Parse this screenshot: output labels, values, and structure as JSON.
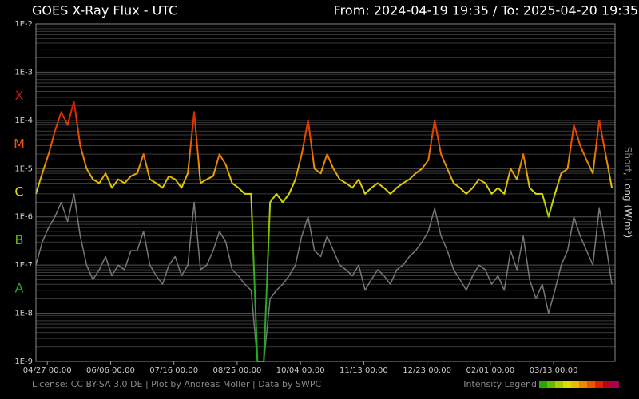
{
  "chart_data": {
    "type": "line",
    "title": "GOES X-Ray Flux - UTC",
    "subtitle": "From: 2024-04-19 19:35  /  To: 2025-04-20 19:35",
    "y_label_short": "Short",
    "y_label_long": ", Long (W/m²)",
    "footer": "License: CC BY-SA 3.0 DE | Plot by Andreas Möller | Data by SWPC",
    "legend_title": "Intensity Legend",
    "legend_colors": [
      "#22aa00",
      "#66bb00",
      "#aacc00",
      "#dddd00",
      "#eebb00",
      "#ee8800",
      "#ee5500",
      "#dd2200",
      "#bb0022",
      "#aa0055"
    ],
    "log_y": true,
    "grid": true,
    "ylim": [
      1e-09,
      0.01
    ],
    "yticks": [
      {
        "value": 1e-09,
        "label": "1E-9"
      },
      {
        "value": 1e-08,
        "label": "1E-8"
      },
      {
        "value": 1e-07,
        "label": "1E-7"
      },
      {
        "value": 1e-06,
        "label": "1E-6"
      },
      {
        "value": 1e-05,
        "label": "1E-5"
      },
      {
        "value": 0.0001,
        "label": "1E-4"
      },
      {
        "value": 0.001,
        "label": "1E-3"
      },
      {
        "value": 0.01,
        "label": "1E-2"
      }
    ],
    "xlim": [
      0,
      366
    ],
    "xticks": [
      {
        "value": 7.18,
        "label": "04/27 00:00"
      },
      {
        "value": 47.18,
        "label": "06/06 00:00"
      },
      {
        "value": 87.18,
        "label": "07/16 00:00"
      },
      {
        "value": 127.18,
        "label": "08/25 00:00"
      },
      {
        "value": 167.18,
        "label": "10/04 00:00"
      },
      {
        "value": 207.18,
        "label": "11/13 00:00"
      },
      {
        "value": 247.18,
        "label": "12/23 00:00"
      },
      {
        "value": 287.18,
        "label": "02/01 00:00"
      },
      {
        "value": 327.18,
        "label": "03/13 00:00"
      }
    ],
    "class_labels": [
      {
        "label": "X",
        "value": 0.00032,
        "color": "#cc1100"
      },
      {
        "label": "M",
        "value": 3.2e-05,
        "color": "#ee5500"
      },
      {
        "label": "C",
        "value": 3.2e-06,
        "color": "#dddd00"
      },
      {
        "label": "B",
        "value": 3.2e-07,
        "color": "#66bb00"
      },
      {
        "label": "A",
        "value": 3.2e-08,
        "color": "#22aa22"
      }
    ],
    "x": [
      0,
      4,
      8,
      12,
      16,
      20,
      24,
      28,
      32,
      36,
      40,
      44,
      48,
      52,
      56,
      60,
      64,
      68,
      72,
      76,
      80,
      84,
      88,
      92,
      96,
      100,
      104,
      108,
      112,
      116,
      120,
      124,
      128,
      132,
      136,
      140,
      144,
      148,
      152,
      156,
      160,
      164,
      168,
      172,
      176,
      180,
      184,
      188,
      192,
      196,
      200,
      204,
      208,
      212,
      216,
      220,
      224,
      228,
      232,
      236,
      240,
      244,
      248,
      252,
      256,
      260,
      264,
      268,
      272,
      276,
      280,
      284,
      288,
      292,
      296,
      300,
      304,
      308,
      312,
      316,
      320,
      324,
      328,
      332,
      336,
      340,
      344,
      348,
      352,
      356,
      360,
      364
    ],
    "series": [
      {
        "name": "Short",
        "color": "#777777",
        "values": [
          1e-07,
          3e-07,
          6e-07,
          1e-06,
          2e-06,
          8e-07,
          3e-06,
          4e-07,
          1e-07,
          5e-08,
          8e-08,
          1.5e-07,
          6e-08,
          1e-07,
          8e-08,
          2e-07,
          2e-07,
          5e-07,
          1e-07,
          6e-08,
          4e-08,
          1e-07,
          1.5e-07,
          6e-08,
          1e-07,
          2e-06,
          8e-08,
          1e-07,
          2e-07,
          5e-07,
          3e-07,
          8e-08,
          6e-08,
          4e-08,
          3e-08,
          1e-09,
          1e-09,
          2e-08,
          3e-08,
          4e-08,
          6e-08,
          1e-07,
          4e-07,
          1e-06,
          2e-07,
          1.5e-07,
          4e-07,
          2e-07,
          1e-07,
          8e-08,
          6e-08,
          1e-07,
          3e-08,
          5e-08,
          8e-08,
          6e-08,
          4e-08,
          8e-08,
          1e-07,
          1.5e-07,
          2e-07,
          3e-07,
          5e-07,
          1.5e-06,
          4e-07,
          2e-07,
          8e-08,
          5e-08,
          3e-08,
          6e-08,
          1e-07,
          8e-08,
          4e-08,
          6e-08,
          3e-08,
          2e-07,
          8e-08,
          4e-07,
          5e-08,
          2e-08,
          4e-08,
          1e-08,
          3e-08,
          1e-07,
          2e-07,
          1e-06,
          4e-07,
          2e-07,
          1e-07,
          1.5e-06,
          3e-07,
          4e-08
        ]
      },
      {
        "name": "Long",
        "values": [
          3e-06,
          8e-06,
          2e-05,
          6e-05,
          0.00015,
          8e-05,
          0.00025,
          3e-05,
          1e-05,
          6e-06,
          5e-06,
          8e-06,
          4e-06,
          6e-06,
          5e-06,
          7e-06,
          8e-06,
          2e-05,
          6e-06,
          5e-06,
          4e-06,
          7e-06,
          6e-06,
          4e-06,
          8e-06,
          0.00015,
          5e-06,
          6e-06,
          7e-06,
          2e-05,
          1.2e-05,
          5e-06,
          4e-06,
          3e-06,
          3e-06,
          1e-09,
          1e-09,
          2e-06,
          3e-06,
          2e-06,
          3e-06,
          6e-06,
          2e-05,
          0.0001,
          1e-05,
          8e-06,
          2e-05,
          1e-05,
          6e-06,
          5e-06,
          4e-06,
          6e-06,
          3e-06,
          4e-06,
          5e-06,
          4e-06,
          3e-06,
          4e-06,
          5e-06,
          6e-06,
          8e-06,
          1e-05,
          1.5e-05,
          0.0001,
          2e-05,
          1e-05,
          5e-06,
          4e-06,
          3e-06,
          4e-06,
          6e-06,
          5e-06,
          3e-06,
          4e-06,
          3e-06,
          1e-05,
          6e-06,
          2e-05,
          4e-06,
          3e-06,
          3e-06,
          1e-06,
          3e-06,
          8e-06,
          1e-05,
          8e-05,
          3e-05,
          1.5e-05,
          8e-06,
          0.0001,
          2e-05,
          4e-06
        ]
      }
    ]
  }
}
